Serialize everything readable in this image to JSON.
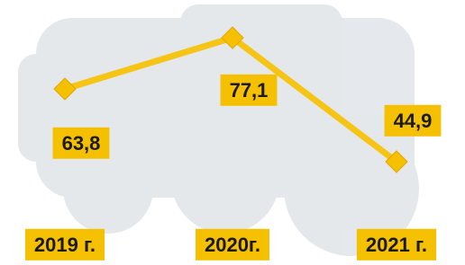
{
  "chart_data": {
    "type": "line",
    "categories": [
      "2019 г.",
      "2020г.",
      "2021 г."
    ],
    "series": [
      {
        "color": "#f5c414",
        "values": [
          63.8,
          77.1,
          44.9
        ],
        "value_labels": [
          "63,8",
          "77,1",
          "44,9"
        ]
      }
    ]
  }
}
